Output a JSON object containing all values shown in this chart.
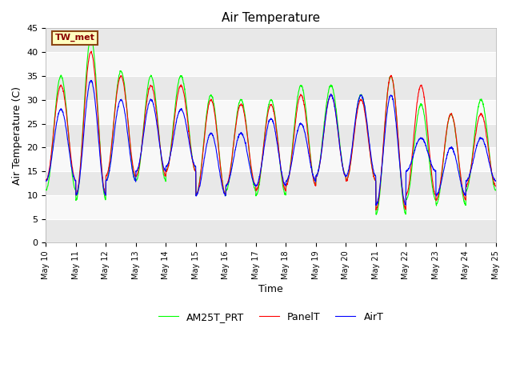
{
  "title": "Air Temperature",
  "xlabel": "Time",
  "ylabel": "Air Temperature (C)",
  "ylim": [
    0,
    45
  ],
  "yticks": [
    0,
    5,
    10,
    15,
    20,
    25,
    30,
    35,
    40,
    45
  ],
  "annotation_text": "TW_met",
  "annotation_color": "#8B0000",
  "annotation_bg": "#FFFFC0",
  "annotation_border": "#8B4513",
  "series": {
    "PanelT": {
      "color": "red",
      "label": "PanelT"
    },
    "AirT": {
      "color": "blue",
      "label": "AirT"
    },
    "AM25T_PRT": {
      "color": "lime",
      "label": "AM25T_PRT"
    }
  },
  "band_color_dark": "#e8e8e8",
  "band_color_light": "#f8f8f8",
  "fig_bg": "white",
  "num_days": 15,
  "start_day": 10,
  "peaks_panel": [
    33,
    40,
    35,
    33,
    33,
    30,
    29,
    29,
    31,
    31,
    30,
    35,
    33,
    27,
    27
  ],
  "troughs_panel": [
    13,
    10,
    14,
    14,
    15,
    10,
    12,
    11,
    12,
    14,
    13,
    7,
    10,
    9,
    12
  ],
  "peaks_air": [
    28,
    34,
    30,
    30,
    28,
    23,
    23,
    26,
    25,
    31,
    31,
    31,
    22,
    20,
    22
  ],
  "troughs_air": [
    13,
    10,
    13,
    15,
    16,
    10,
    12,
    12,
    13,
    14,
    14,
    8,
    15,
    10,
    13
  ],
  "peaks_am25": [
    35,
    43,
    36,
    35,
    35,
    31,
    30,
    30,
    33,
    33,
    31,
    35,
    29,
    27,
    30
  ],
  "troughs_am25": [
    11,
    9,
    13,
    13,
    15,
    10,
    11,
    10,
    12,
    14,
    13,
    6,
    9,
    8,
    11
  ]
}
